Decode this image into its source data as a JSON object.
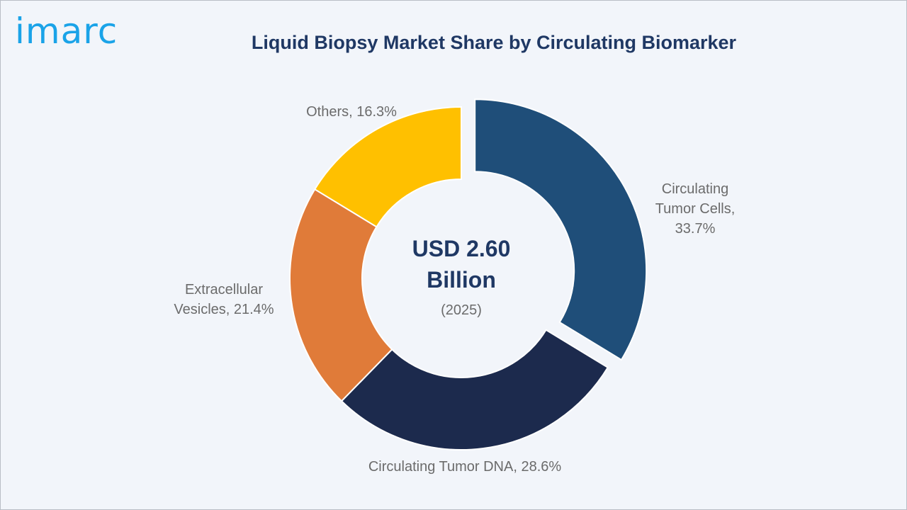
{
  "brand": {
    "logo_text": "imarc",
    "accent": "#1aa3e8"
  },
  "chart_data": {
    "type": "pie",
    "style": "donut",
    "title": "Liquid Biopsy Market Share by Circulating Biomarker",
    "center": {
      "value": "USD 2.60",
      "unit": "Billion",
      "year": "(2025)"
    },
    "slices": [
      {
        "name": "Circulating Tumor Cells",
        "value": 33.7,
        "label": "Circulating\nTumor Cells,\n33.7%",
        "color": "#1f4e79",
        "exploded": true
      },
      {
        "name": "Circulating Tumor DNA",
        "value": 28.6,
        "label": "Circulating Tumor DNA, 28.6%",
        "color": "#1c2a4d",
        "exploded": false
      },
      {
        "name": "Extracellular Vesicles",
        "value": 21.4,
        "label": "Extracellular\nVesicles, 21.4%",
        "color": "#e07b39",
        "exploded": false
      },
      {
        "name": "Others",
        "value": 16.3,
        "label": "Others, 16.3%",
        "color": "#ffc000",
        "exploded": false
      }
    ]
  }
}
